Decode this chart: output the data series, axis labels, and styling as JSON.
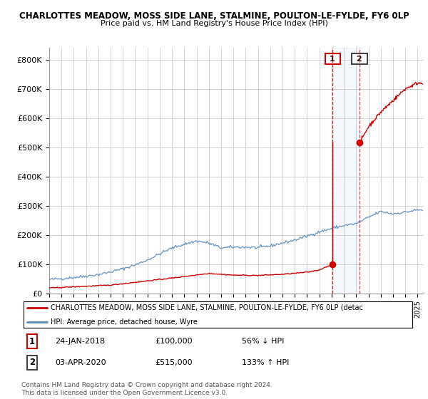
{
  "title_line1": "CHARLOTTES MEADOW, MOSS SIDE LANE, STALMINE, POULTON-LE-FYLDE, FY6 0LP",
  "title_line2": "Price paid vs. HM Land Registry's House Price Index (HPI)",
  "yticks": [
    0,
    100000,
    200000,
    300000,
    400000,
    500000,
    600000,
    700000,
    800000
  ],
  "ytick_labels": [
    "£0",
    "£100K",
    "£200K",
    "£300K",
    "£400K",
    "£500K",
    "£600K",
    "£700K",
    "£800K"
  ],
  "ylim": [
    0,
    840000
  ],
  "hpi_color": "#5588bb",
  "property_color": "#cc0000",
  "transaction1_date": 2018.07,
  "transaction1_price": 100000,
  "transaction1_label": "1",
  "transaction2_date": 2020.27,
  "transaction2_price": 515000,
  "transaction2_label": "2",
  "legend_property": "CHARLOTTES MEADOW, MOSS SIDE LANE, STALMINE, POULTON-LE-FYLDE, FY6 0LP (detac",
  "legend_hpi": "HPI: Average price, detached house, Wyre",
  "note1_num": "1",
  "note1_date": "24-JAN-2018",
  "note1_price": "£100,000",
  "note1_change": "56% ↓ HPI",
  "note2_num": "2",
  "note2_date": "03-APR-2020",
  "note2_price": "£515,000",
  "note2_change": "133% ↑ HPI",
  "footer": "Contains HM Land Registry data © Crown copyright and database right 2024.\nThis data is licensed under the Open Government Licence v3.0.",
  "xmin": 1995,
  "xmax": 2025.5,
  "shade_x1": 2018.07,
  "shade_x2": 2020.27,
  "hpi_anchor1": [
    1995,
    1996,
    1997,
    1998,
    1999,
    2000,
    2001,
    2002,
    2003,
    2004,
    2005,
    2006,
    2007,
    2008,
    2009,
    2010,
    2011,
    2012,
    2013,
    2014,
    2015,
    2016,
    2017,
    2018,
    2019,
    2020,
    2021,
    2022,
    2023,
    2024,
    2025
  ],
  "hpi_anchor2": [
    47000,
    50000,
    54000,
    59000,
    64000,
    73000,
    84000,
    97000,
    114000,
    135000,
    155000,
    168000,
    179000,
    172000,
    155000,
    158000,
    158000,
    156000,
    162000,
    172000,
    182000,
    196000,
    210000,
    222000,
    232000,
    238000,
    260000,
    280000,
    272000,
    278000,
    285000
  ],
  "prop_anchor1_x": [
    1995,
    2000,
    2005,
    2008,
    2010,
    2012,
    2014,
    2016,
    2017,
    2018.07
  ],
  "prop_anchor1_y": [
    18000,
    28000,
    52000,
    68000,
    62000,
    61000,
    65000,
    72000,
    80000,
    100000
  ],
  "prop_anchor2_x": [
    2020.27,
    2021,
    2022,
    2023,
    2024,
    2025
  ],
  "prop_anchor2_y": [
    515000,
    570000,
    620000,
    660000,
    700000,
    720000
  ]
}
